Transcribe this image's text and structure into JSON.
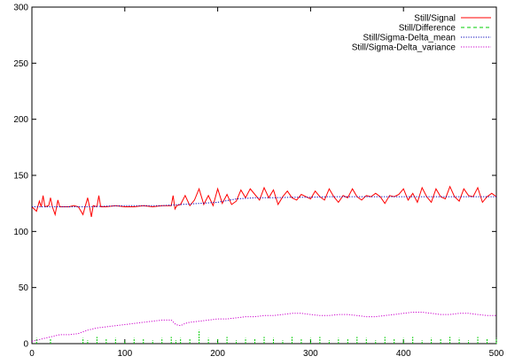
{
  "chart_data": {
    "type": "line",
    "title": "",
    "xlabel": "",
    "ylabel": "",
    "xlim": [
      0,
      500
    ],
    "ylim": [
      0,
      300
    ],
    "x_ticks": [
      0,
      100,
      200,
      300,
      400,
      500
    ],
    "y_ticks": [
      0,
      50,
      100,
      150,
      200,
      250,
      300
    ],
    "grid": false,
    "legend_position": "top-right",
    "series": [
      {
        "name": "Still/Signal",
        "color": "#ff0000",
        "dash": "solid",
        "x": [
          0,
          5,
          8,
          10,
          12,
          14,
          18,
          20,
          22,
          25,
          28,
          30,
          35,
          40,
          45,
          50,
          55,
          60,
          62,
          64,
          66,
          70,
          72,
          74,
          80,
          90,
          100,
          110,
          120,
          130,
          140,
          150,
          152,
          154,
          156,
          160,
          165,
          170,
          175,
          180,
          185,
          190,
          195,
          200,
          205,
          210,
          215,
          220,
          225,
          230,
          235,
          240,
          245,
          250,
          255,
          260,
          265,
          270,
          275,
          280,
          285,
          290,
          295,
          300,
          305,
          310,
          315,
          320,
          325,
          330,
          335,
          340,
          345,
          350,
          355,
          360,
          365,
          370,
          375,
          380,
          385,
          390,
          395,
          400,
          405,
          410,
          415,
          420,
          425,
          430,
          435,
          440,
          445,
          450,
          455,
          460,
          465,
          470,
          475,
          480,
          485,
          490,
          495,
          500
        ],
        "y": [
          122,
          118,
          127,
          122,
          132,
          122,
          123,
          130,
          122,
          115,
          128,
          122,
          122,
          122,
          123,
          122,
          115,
          130,
          122,
          113,
          123,
          122,
          132,
          122,
          122,
          123,
          122,
          122,
          123,
          122,
          123,
          123,
          132,
          120,
          123,
          124,
          132,
          123,
          128,
          138,
          124,
          132,
          123,
          138,
          125,
          133,
          124,
          127,
          137,
          130,
          138,
          133,
          128,
          139,
          130,
          137,
          124,
          131,
          136,
          130,
          128,
          133,
          131,
          129,
          136,
          131,
          128,
          138,
          131,
          126,
          132,
          130,
          138,
          131,
          128,
          132,
          131,
          134,
          131,
          125,
          132,
          131,
          133,
          138,
          128,
          134,
          126,
          139,
          131,
          126,
          138,
          131,
          129,
          140,
          131,
          127,
          138,
          132,
          131,
          139,
          126,
          131,
          134,
          131
        ]
      },
      {
        "name": "Still/Difference",
        "color": "#00cc00",
        "dash": "dashed",
        "x": [
          0,
          5,
          10,
          20,
          30,
          40,
          55,
          60,
          70,
          80,
          90,
          100,
          110,
          120,
          130,
          140,
          150,
          155,
          160,
          170,
          180,
          190,
          200,
          210,
          220,
          230,
          240,
          250,
          260,
          270,
          280,
          290,
          300,
          310,
          320,
          330,
          340,
          350,
          360,
          370,
          380,
          390,
          400,
          410,
          420,
          430,
          440,
          450,
          460,
          470,
          480,
          490,
          500
        ],
        "y": [
          0,
          5,
          0,
          4,
          0,
          0,
          5,
          3,
          6,
          4,
          5,
          3,
          5,
          4,
          3,
          5,
          6,
          3,
          5,
          4,
          12,
          5,
          4,
          6,
          3,
          5,
          4,
          6,
          5,
          3,
          6,
          4,
          5,
          6,
          3,
          5,
          4,
          6,
          5,
          3,
          6,
          4,
          5,
          6,
          3,
          5,
          4,
          6,
          5,
          3,
          6,
          4,
          5
        ]
      },
      {
        "name": "Still/Sigma-Delta_mean",
        "color": "#0000bb",
        "dash": "dotted",
        "x": [
          0,
          20,
          40,
          60,
          80,
          100,
          120,
          140,
          160,
          180,
          200,
          220,
          240,
          260,
          280,
          300,
          320,
          340,
          360,
          380,
          400,
          420,
          440,
          460,
          480,
          500
        ],
        "y": [
          122,
          122,
          122,
          122,
          122.5,
          123,
          123,
          123,
          124,
          125,
          126,
          129,
          130,
          130,
          130.5,
          130.5,
          131,
          131,
          131,
          131,
          131,
          131,
          131,
          131,
          131,
          131
        ]
      },
      {
        "name": "Still/Sigma-Delta_variance",
        "color": "#cc00cc",
        "dash": "dotted",
        "x": [
          0,
          10,
          20,
          30,
          40,
          50,
          60,
          70,
          80,
          90,
          100,
          110,
          120,
          130,
          140,
          150,
          155,
          160,
          165,
          170,
          180,
          190,
          200,
          210,
          220,
          230,
          240,
          250,
          260,
          270,
          280,
          290,
          300,
          310,
          320,
          330,
          340,
          350,
          360,
          370,
          380,
          390,
          400,
          410,
          420,
          430,
          440,
          450,
          460,
          470,
          480,
          490,
          500
        ],
        "y": [
          2,
          4,
          6,
          8,
          8,
          9,
          12,
          14,
          15,
          16,
          17,
          18,
          19,
          20,
          21,
          21,
          17,
          16,
          18,
          19,
          20,
          21,
          22,
          22,
          23,
          24,
          24,
          25,
          25,
          26,
          27,
          27,
          26,
          25,
          25,
          26,
          26,
          25,
          24,
          24,
          25,
          26,
          27,
          28,
          28,
          27,
          26,
          26,
          27,
          27,
          26,
          25,
          25
        ]
      }
    ]
  }
}
